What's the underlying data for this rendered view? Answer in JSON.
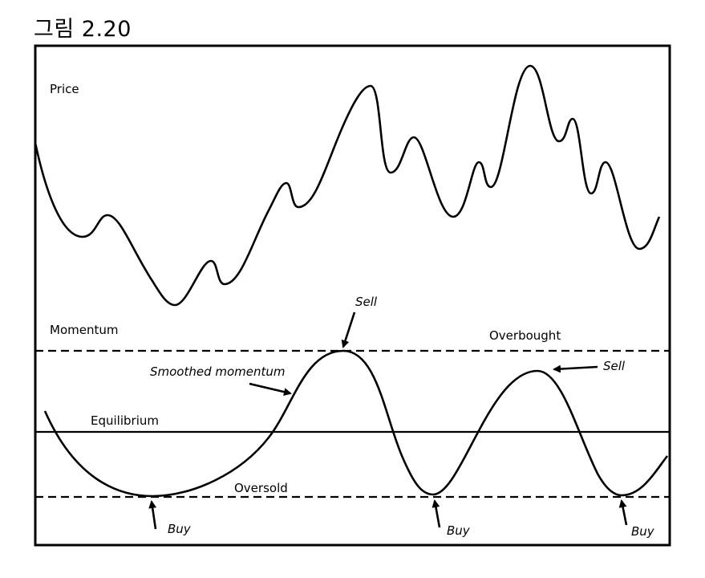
{
  "figure": {
    "title": "그림 2.20"
  },
  "labels": {
    "price": "Price",
    "momentum": "Momentum",
    "smoothed_momentum": "Smoothed momentum",
    "equilibrium": "Equilibrium",
    "overbought": "Overbought",
    "oversold": "Oversold",
    "sell_1": "Sell",
    "sell_2": "Sell",
    "buy_1": "Buy",
    "buy_2": "Buy",
    "buy_3": "Buy"
  }
}
